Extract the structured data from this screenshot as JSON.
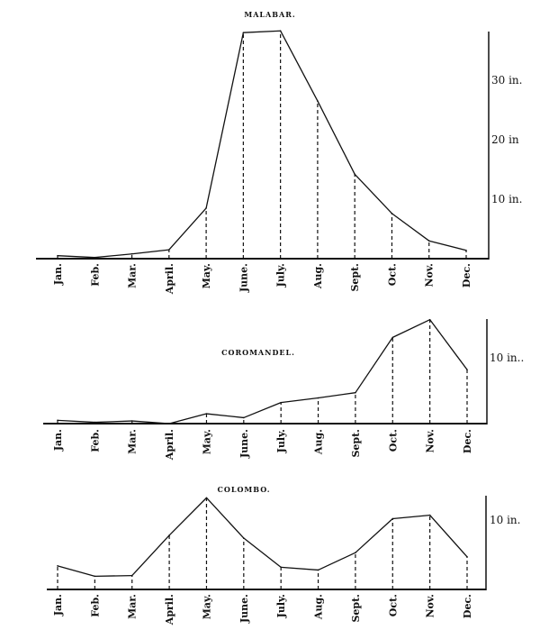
{
  "chart_data": [
    {
      "type": "line",
      "title": "MALABAR.",
      "categories": [
        "Jan.",
        "Feb.",
        "Mar.",
        "April.",
        "May.",
        "June.",
        "July.",
        "Aug.",
        "Sept.",
        "Oct.",
        "Nov.",
        "Dec."
      ],
      "values": [
        0.5,
        0.2,
        0.8,
        1.5,
        8.5,
        38,
        38.3,
        26.5,
        14.2,
        7.6,
        3.0,
        1.4
      ],
      "unit": "in.",
      "ylim": [
        0,
        38
      ],
      "yticks": [
        {
          "value": 10,
          "label": "10 in."
        },
        {
          "value": 20,
          "label": "20 in"
        },
        {
          "value": 30,
          "label": "30 in."
        }
      ],
      "axis_side": "right",
      "grid": false
    },
    {
      "type": "line",
      "title": "COROMANDEL.",
      "categories": [
        "Jan.",
        "Feb.",
        "Mar.",
        "April.",
        "May.",
        "June.",
        "July.",
        "Aug.",
        "Sept.",
        "Oct.",
        "Nov.",
        "Dec."
      ],
      "values": [
        0.5,
        0.2,
        0.4,
        0,
        1.5,
        0.9,
        3.2,
        3.9,
        4.7,
        13.1,
        15.8,
        8.2
      ],
      "unit": "in.",
      "ylim": [
        0,
        16
      ],
      "yticks": [
        {
          "value": 10,
          "label": "10 in.."
        }
      ],
      "axis_side": "right",
      "grid": false
    },
    {
      "type": "line",
      "title": "COLOMBO.",
      "categories": [
        "Jan.",
        "Feb.",
        "Mar.",
        "April.",
        "May.",
        "June.",
        "July.",
        "Aug.",
        "Sept.",
        "Oct.",
        "Nov.",
        "Dec."
      ],
      "values": [
        3.4,
        1.9,
        2.0,
        7.8,
        13.2,
        7.4,
        3.2,
        2.8,
        5.3,
        10.2,
        10.7,
        4.7
      ],
      "unit": "in.",
      "ylim": [
        0,
        13.5
      ],
      "yticks": [
        {
          "value": 10,
          "label": "10 in."
        }
      ],
      "axis_side": "right",
      "grid": false
    }
  ]
}
